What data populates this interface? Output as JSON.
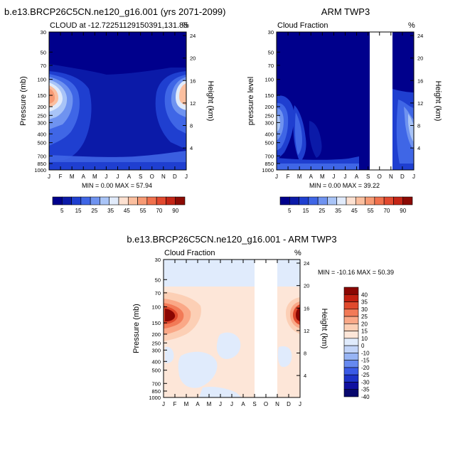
{
  "months": [
    "J",
    "F",
    "M",
    "A",
    "M",
    "J",
    "J",
    "A",
    "S",
    "O",
    "N",
    "D",
    "J"
  ],
  "pressure_ticks": [
    "30",
    "50",
    "70",
    "100",
    "150",
    "200",
    "250",
    "300",
    "400",
    "500",
    "700",
    "850",
    "1000"
  ],
  "height_ticks": [
    "24",
    "20",
    "16",
    "12",
    "8",
    "4"
  ],
  "colors": {
    "seq": [
      "#00008c",
      "#0b1aa8",
      "#1f3fd0",
      "#3f66e6",
      "#6f93f0",
      "#a9c4f7",
      "#e1ebfb",
      "#fde1d1",
      "#fbbf9f",
      "#f79a74",
      "#f1714d",
      "#e2492f",
      "#c42516",
      "#8c0a04"
    ],
    "diff": [
      "#08086e",
      "#1010a0",
      "#1d32c8",
      "#3a5ae6",
      "#6689f0",
      "#97b4f4",
      "#c2d4f8",
      "#e0ebfc",
      "#fde6d8",
      "#fccfb5",
      "#faa887",
      "#f27a57",
      "#e04a2d",
      "#c21f10",
      "#8a0602"
    ],
    "missing": "#ffffff"
  },
  "chart_data": [
    {
      "type": "heatmap",
      "title": "b.e13.BRCP26C5CN.ne120_g16.001 (yrs 2071-2099)",
      "left_label": "CLOUD at -12.7225112915039​1,131.85",
      "right_label": "%",
      "ylabel": "Pressure (mb)",
      "y2label": "Height (km)",
      "stats": "MIN =   0.00 MAX =  57.94",
      "min": 0.0,
      "max": 57.94,
      "colorbar_labels": [
        "5",
        "15",
        "25",
        "35",
        "45",
        "55",
        "70",
        "90"
      ]
    },
    {
      "type": "heatmap",
      "title": "ARM TWP3",
      "left_label": "Cloud Fraction",
      "right_label": "%",
      "ylabel": "pressure level",
      "y2label": "Height (km)",
      "stats": "MIN =   0.00 MAX =  39.22",
      "min": 0.0,
      "max": 39.22,
      "missing_months": [
        "S",
        "O"
      ],
      "colorbar_labels": [
        "5",
        "15",
        "25",
        "35",
        "45",
        "55",
        "70",
        "90"
      ]
    },
    {
      "type": "heatmap",
      "title": "b.e13.BRCP26C5CN.ne120_g16.001 - ARM TWP3",
      "left_label": "Cloud Fraction",
      "right_label": "%",
      "ylabel": "Pressure (mb)",
      "y2label": "Height (km)",
      "stats": "MIN = -10.16 MAX =  50.39",
      "min": -10.16,
      "max": 50.39,
      "missing_months": [
        "S",
        "O"
      ],
      "colorbar_labels": [
        "40",
        "35",
        "30",
        "25",
        "20",
        "15",
        "10",
        "0",
        "-10",
        "-15",
        "-20",
        "-25",
        "-30",
        "-35",
        "-40"
      ]
    }
  ]
}
